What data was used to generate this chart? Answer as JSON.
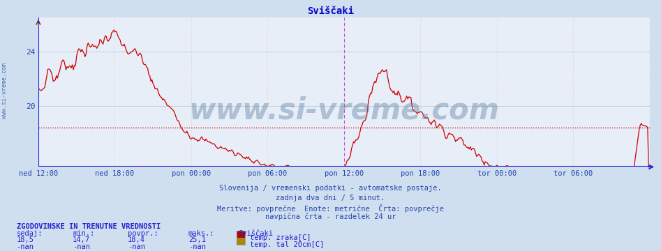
{
  "title": "Sviščaki",
  "title_color": "#0000cc",
  "bg_color": "#d0dff0",
  "plot_bg_color": "#e8eef8",
  "line_color": "#cc0000",
  "avg_line_color": "#cc0000",
  "avg_line_value": 18.4,
  "grid_color_h": "#b8c8d8",
  "grid_color_v": "#e0c8c8",
  "vline_color": "#cc44cc",
  "axis_color": "#2222cc",
  "ytick_labels": [
    "24",
    "20"
  ],
  "ytick_values": [
    20,
    24
  ],
  "ylim_min": 15.5,
  "ylim_max": 26.5,
  "xlabel_color": "#2244aa",
  "ylabel_color": "#2244aa",
  "watermark_text": "www.si-vreme.com",
  "watermark_color": "#6688aa",
  "watermark_alpha": 0.45,
  "footer_line1": "Slovenija / vremenski podatki - avtomatske postaje.",
  "footer_line2": "zadnja dva dni / 5 minut.",
  "footer_line3": "Meritve: povprečne  Enote: metrične  Črta: povprečje",
  "footer_line4": "navpična črta - razdelek 24 ur",
  "footer_color": "#2244aa",
  "legend_title": "ZGODOVINSKE IN TRENUTNE VREDNOSTI",
  "legend_col0": "sedaj:",
  "legend_col1": "min.:",
  "legend_col2": "povpr.:",
  "legend_col3": "maks.:",
  "legend_station": "Sviščaki",
  "legend_row1_vals": [
    "18,5",
    "14,7",
    "18,4",
    "25,1"
  ],
  "legend_row2_vals": [
    "-nan",
    "-nan",
    "-nan",
    "-nan"
  ],
  "legend_label1": "temp. zraka[C]",
  "legend_label2": "temp. tal 20cm[C]",
  "legend_color1": "#bb0000",
  "legend_color2": "#aa8800",
  "side_text": "www.si-vreme.com",
  "side_text_color": "#4466aa",
  "xtick_labels": [
    "ned 12:00",
    "ned 18:00",
    "pon 00:00",
    "pon 06:00",
    "pon 12:00",
    "pon 18:00",
    "tor 00:00",
    "tor 06:00"
  ],
  "xtick_positions": [
    0,
    72,
    144,
    216,
    288,
    360,
    432,
    504
  ],
  "vline_positions": [
    288,
    576
  ],
  "total_points": 576
}
